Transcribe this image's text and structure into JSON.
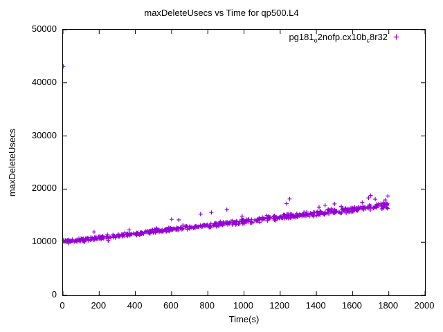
{
  "title": "maxDeleteUsecs vs Time for qp500.L4",
  "axes": {
    "xlabel": "Time(s)",
    "ylabel": "maxDeleteUsecs"
  },
  "legend": {
    "base1": "pg181",
    "sub1": "o",
    "base2": "2nofp.cx10b",
    "sub2": "c",
    "base3": "8r32"
  },
  "colors": {
    "series": "#9400d3",
    "axis": "#000000",
    "background": "#ffffff"
  },
  "chart_data": {
    "type": "scatter",
    "title": "maxDeleteUsecs vs Time for qp500.L4",
    "xlabel": "Time(s)",
    "ylabel": "maxDeleteUsecs",
    "xlim": [
      0,
      2000
    ],
    "ylim": [
      0,
      50000
    ],
    "xticks": [
      0,
      200,
      400,
      600,
      800,
      1000,
      1200,
      1400,
      1600,
      1800,
      2000
    ],
    "yticks": [
      0,
      10000,
      20000,
      30000,
      40000,
      50000
    ],
    "grid": false,
    "legend_position": "top-right",
    "series": [
      {
        "name": "pg181_o2nofp.cx10b_c8r32",
        "marker": "plus",
        "color": "#9400d3",
        "trend": {
          "x_start": 0,
          "y_start": 10100,
          "x_end": 1800,
          "y_end": 16950
        },
        "noise": {
          "base": 350,
          "growth": 300
        },
        "point_count": 650,
        "seed": 42,
        "outliers": [
          [
            2,
            43100
          ],
          [
            905,
            16150
          ],
          [
            1252,
            18150
          ],
          [
            1235,
            17250
          ],
          [
            1448,
            16950
          ],
          [
            1653,
            17500
          ],
          [
            1688,
            18350
          ],
          [
            1700,
            18800
          ],
          [
            1725,
            18100
          ],
          [
            1780,
            17950
          ],
          [
            1795,
            18700
          ],
          [
            1500,
            17200
          ],
          [
            1415,
            16600
          ],
          [
            820,
            15600
          ],
          [
            760,
            15300
          ],
          [
            600,
            14300
          ],
          [
            640,
            14200
          ],
          [
            30,
            9800
          ],
          [
            120,
            10050
          ],
          [
            250,
            10300
          ]
        ]
      }
    ]
  }
}
